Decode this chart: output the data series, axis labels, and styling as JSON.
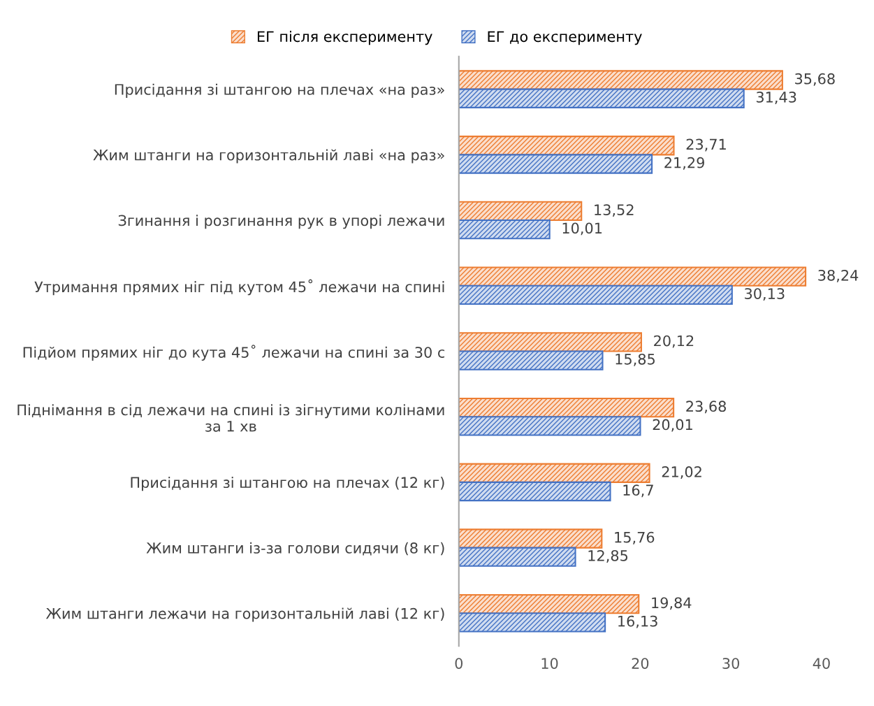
{
  "chart_data": {
    "type": "bar",
    "orientation": "horizontal",
    "categories": [
      "Присідання зі штангою на плечах «на раз»",
      "Жим штанги на горизонтальній лаві «на раз»",
      "Згинання і розгинання рук в упорі лежачи",
      "Утримання прямих ніг під кутом 45˚ лежачи на спині",
      "Підйом прямих ніг до кута 45˚ лежачи на спині за 30 с",
      "Піднімання в сід лежачи на спині із зігнутими колінами\nза 1 хв",
      "Присідання зі штангою на плечах (12 кг)",
      "Жим штанги із-за голови сидячи (8 кг)",
      "Жим штанги лежачи на горизонтальній лаві (12 кг)"
    ],
    "series": [
      {
        "name": "ЕГ після експерименту",
        "color": "#ed7d31",
        "values": [
          35.68,
          23.71,
          13.52,
          38.24,
          20.12,
          23.68,
          21.02,
          15.76,
          19.84
        ],
        "value_labels": [
          "35,68",
          "23,71",
          "13,52",
          "38,24",
          "20,12",
          "23,68",
          "21,02",
          "15,76",
          "19,84"
        ]
      },
      {
        "name": "ЕГ до експерименту",
        "color": "#4472c4",
        "values": [
          31.43,
          21.29,
          10.01,
          30.13,
          15.85,
          20.01,
          16.7,
          12.85,
          16.13
        ],
        "value_labels": [
          "31,43",
          "21,29",
          "10,01",
          "30,13",
          "15,85",
          "20,01",
          "16,7",
          "12,85",
          "16,13"
        ]
      }
    ],
    "xlim": [
      0,
      40
    ],
    "xticks": [
      0,
      10,
      20,
      30,
      40
    ],
    "grid": false,
    "legend": "top"
  }
}
